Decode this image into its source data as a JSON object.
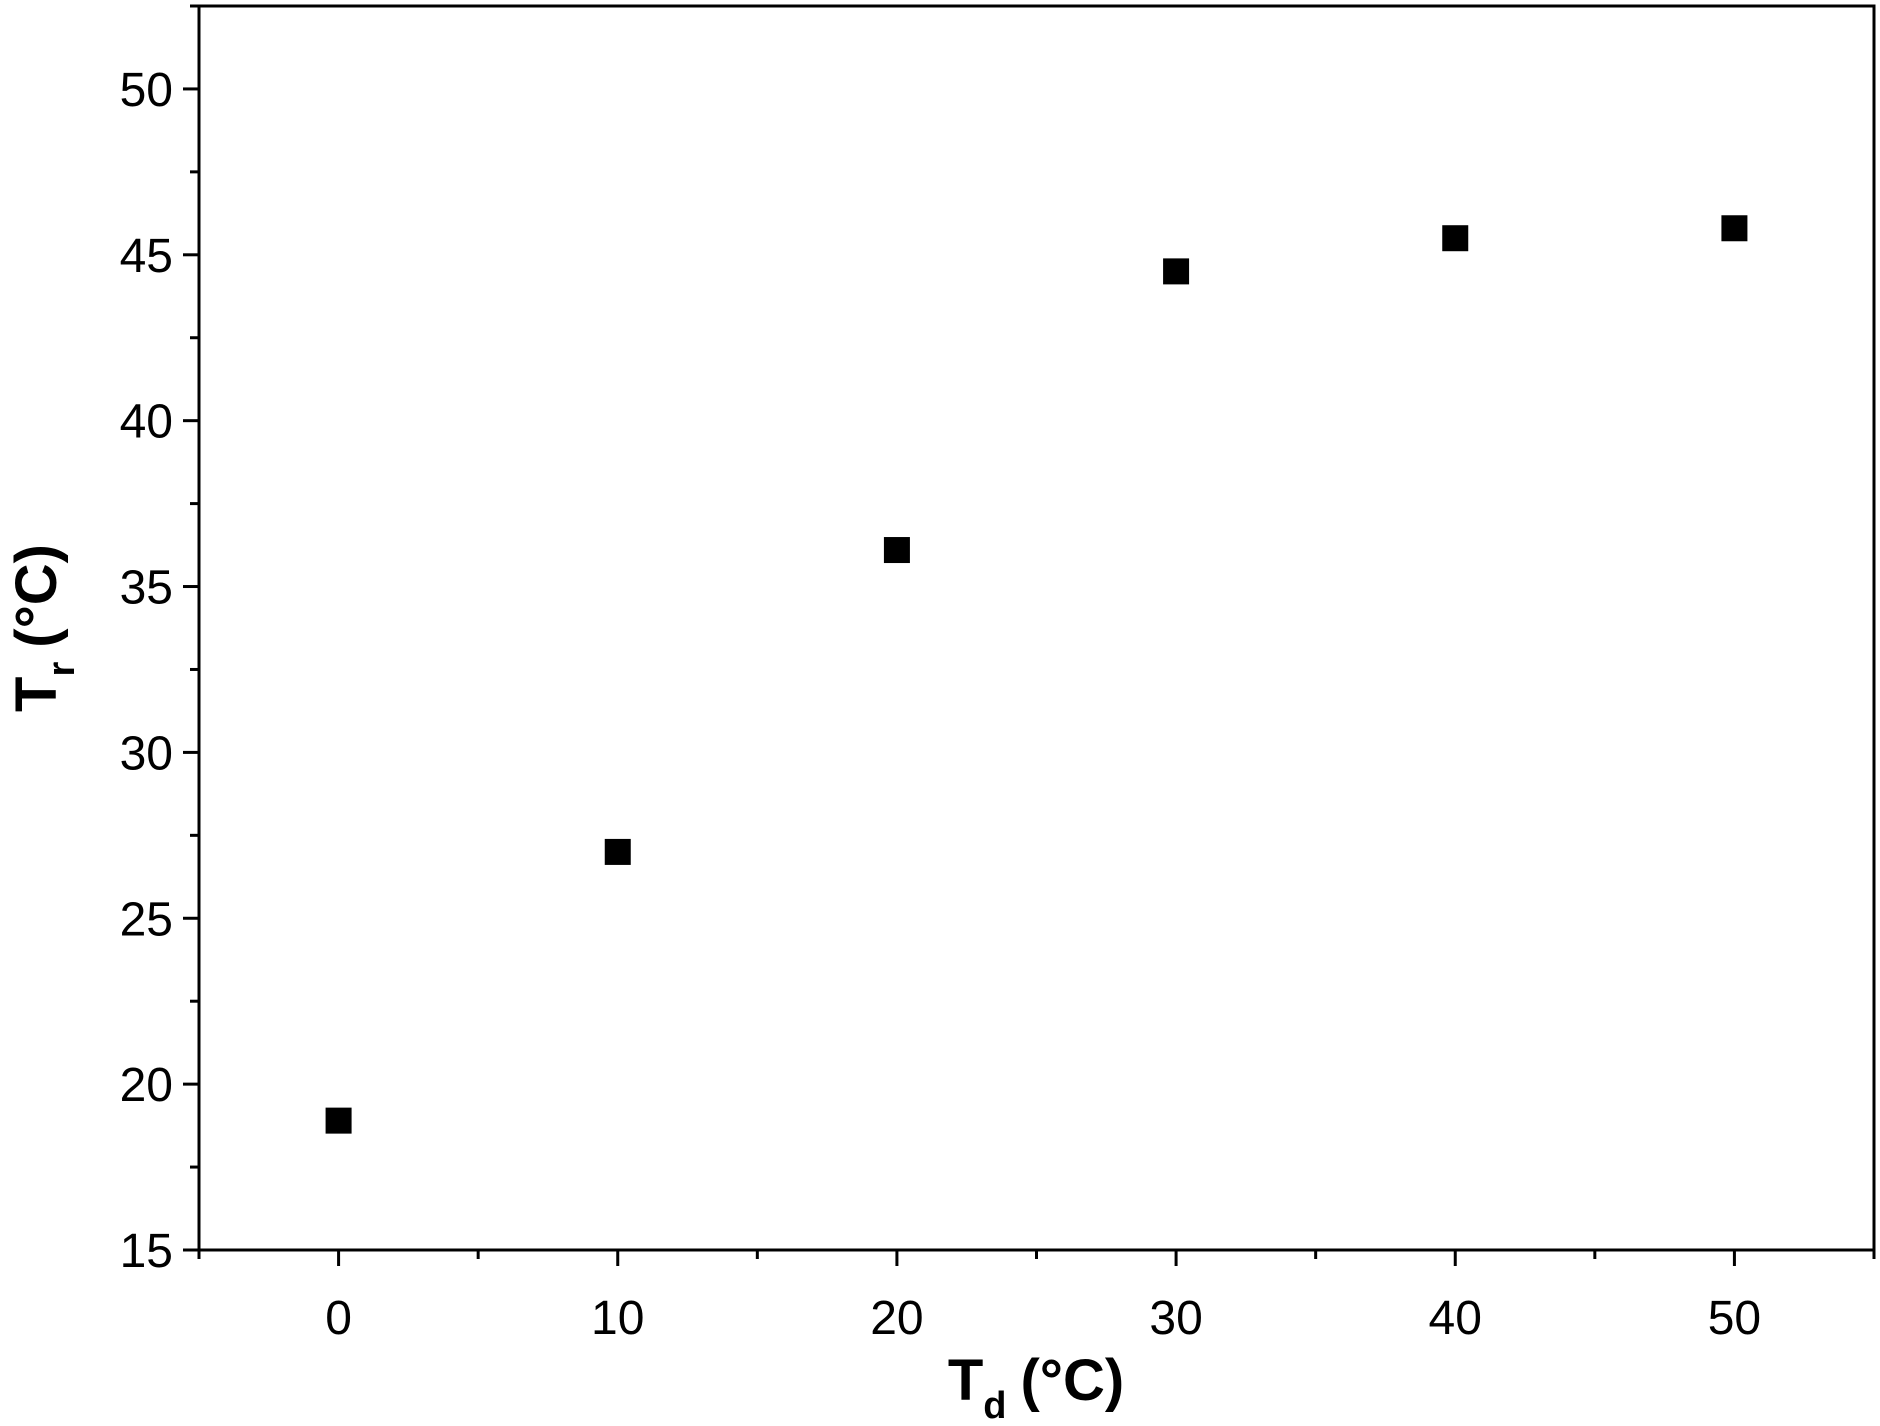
{
  "chart_data": {
    "type": "scatter",
    "xlabel": {
      "text": "T",
      "subscript": "d",
      "suffix": "(°C)"
    },
    "ylabel": {
      "text": "T",
      "subscript": "r",
      "suffix": "(°C)"
    },
    "series": [
      {
        "name": "Tr",
        "color": "#000000",
        "x": [
          0,
          10,
          20,
          30,
          40,
          50
        ],
        "values": [
          18.9,
          27.0,
          36.1,
          44.5,
          45.5,
          45.8
        ]
      }
    ],
    "xlim": [
      -5,
      55
    ],
    "xticks": [
      0,
      10,
      20,
      30,
      40,
      50
    ],
    "ylim": [
      15,
      52.5
    ],
    "yticks": [
      15,
      20,
      25,
      30,
      35,
      40,
      45,
      50
    ],
    "grid": false
  }
}
